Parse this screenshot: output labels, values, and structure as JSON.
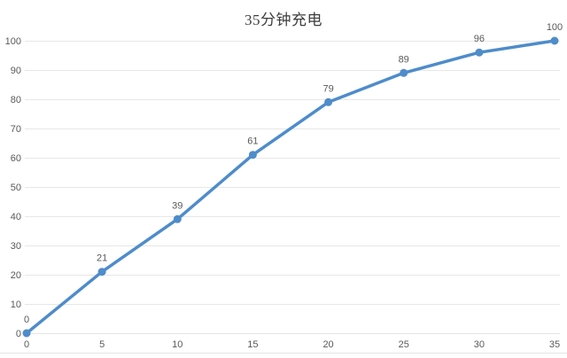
{
  "chart": {
    "title": "35分钟充电"
  },
  "chart_data": {
    "type": "line",
    "title": "35分钟充电",
    "xlabel": "",
    "ylabel": "",
    "x": [
      0,
      5,
      10,
      15,
      20,
      25,
      30,
      35
    ],
    "values": [
      0,
      21,
      39,
      61,
      79,
      89,
      96,
      100
    ],
    "data_labels": [
      "0",
      "21",
      "39",
      "61",
      "79",
      "89",
      "96",
      "100"
    ],
    "x_tick_labels": [
      "0",
      "5",
      "10",
      "15",
      "20",
      "25",
      "30",
      "35"
    ],
    "y_ticks": [
      0,
      10,
      20,
      30,
      40,
      50,
      60,
      70,
      80,
      90,
      100
    ],
    "y_tick_labels": [
      "0",
      "10",
      "20",
      "30",
      "40",
      "50",
      "60",
      "70",
      "80",
      "90",
      "100"
    ],
    "xlim": [
      0,
      35
    ],
    "ylim": [
      0,
      100
    ],
    "grid": "horizontal",
    "legend": "none",
    "marker": "circle",
    "colors": {
      "line": "#4e8cca",
      "marker": "#4e8cca",
      "grid": "#e7e7e7",
      "bottom_border": "#e3e3e3",
      "tick_label": "#595959",
      "data_label": "#595959",
      "title": "#3d3d3d",
      "background": "#ffffff"
    }
  }
}
